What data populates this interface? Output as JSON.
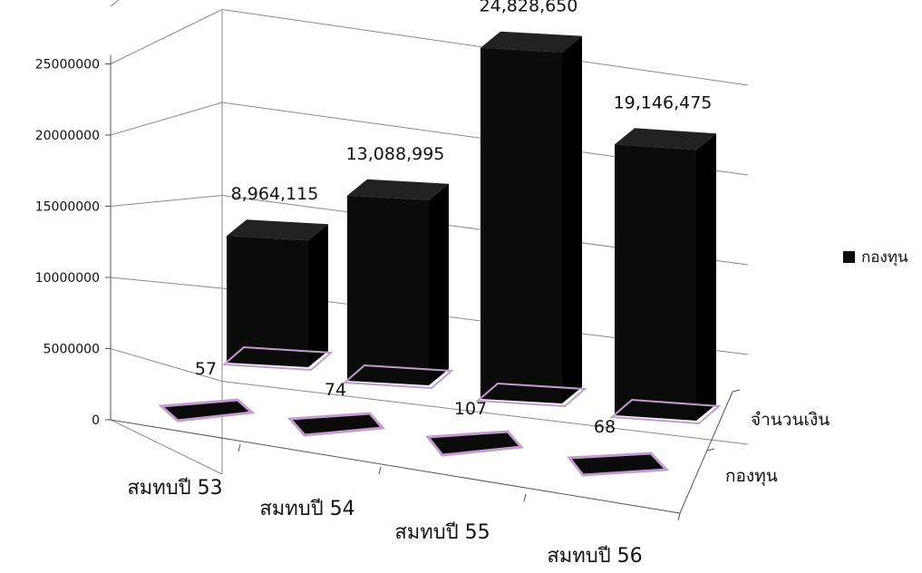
{
  "chart_data": {
    "type": "bar",
    "categories": [
      "สมทบปี 53",
      "สมทบปี 54",
      "สมทบปี 55",
      "สมทบปี 56"
    ],
    "series": [
      {
        "name": "จำนวนเงิน",
        "values": [
          8964115,
          13088995,
          24828650,
          19146475
        ],
        "labels": [
          "8,964,115",
          "13,088,995",
          "24,828,650",
          "19,146,475"
        ]
      },
      {
        "name": "กองทุน",
        "values": [
          57,
          74,
          107,
          68
        ],
        "labels": [
          "57",
          "74",
          "107",
          "68"
        ]
      }
    ],
    "y_ticks": [
      "0",
      "5000000",
      "10000000",
      "15000000",
      "20000000",
      "25000000"
    ],
    "ylim": [
      0,
      25000000
    ],
    "legend": {
      "items": [
        "กองทุน"
      ],
      "position": "right"
    },
    "grid": true,
    "title": "",
    "xlabel": "",
    "ylabel": ""
  },
  "colors": {
    "bar": "#0b0b0b",
    "bar_side": "#000000",
    "bar_top": "#222222",
    "floor_outline": "#c49ad1",
    "grid": "#8a8a8a",
    "axis": "#555555",
    "text": "#111111"
  }
}
